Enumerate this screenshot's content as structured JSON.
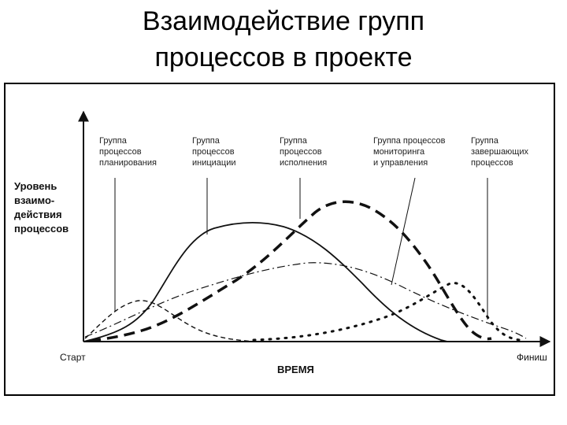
{
  "title": {
    "line1": "Взаимодействие групп",
    "line2": "процессов в проекте"
  },
  "y_axis_label": [
    "Уровень",
    "взаимо-",
    "действия",
    "процессов"
  ],
  "x_axis": {
    "start": "Старт",
    "finish": "Финиш",
    "title": "ВРЕМЯ"
  },
  "process_groups": [
    {
      "key": "planning",
      "lines": [
        "Группа",
        "процессов",
        "планирования"
      ]
    },
    {
      "key": "initiation",
      "lines": [
        "Группа",
        "процессов",
        "инициации"
      ]
    },
    {
      "key": "execution",
      "lines": [
        "Группа",
        "процессов",
        "исполнения"
      ]
    },
    {
      "key": "monitoring",
      "lines": [
        "Группа процессов",
        "мониторинга",
        "и управления"
      ]
    },
    {
      "key": "closing",
      "lines": [
        "Группа",
        "завершающих",
        "процессов"
      ]
    }
  ],
  "colors": {
    "line": "#111111",
    "frame": "#000000"
  }
}
